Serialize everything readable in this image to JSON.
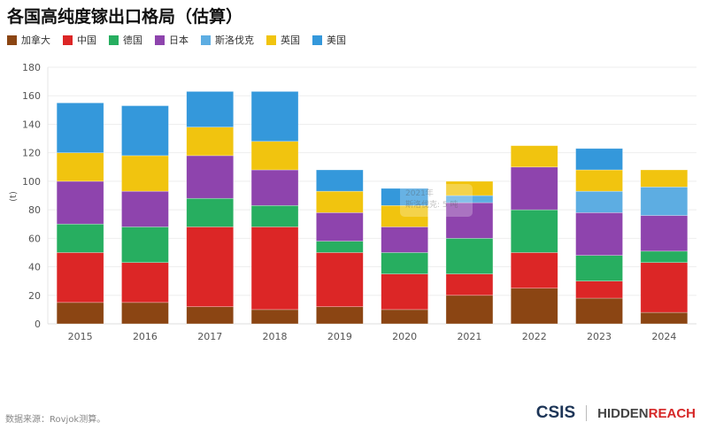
{
  "title": "各国高纯度镓出口格局（估算）",
  "source": "数据来源：Rovjok测算。",
  "logo": {
    "csis": "CSIS",
    "hidden": "HIDDEN",
    "reach": "REACH"
  },
  "tooltip": {
    "title": "2021年",
    "text": "斯洛伐克: 5 吨"
  },
  "chart_data": {
    "type": "bar",
    "stacked": true,
    "title": "各国高纯度镓出口格局（估算）",
    "ylabel": "(t)",
    "ylim": [
      0,
      180
    ],
    "yticks": [
      "0",
      "20",
      "40",
      "60",
      "80",
      "100",
      "120",
      "140",
      "160",
      "180"
    ],
    "grid": true,
    "legend_position": "top-left",
    "categories": [
      "2015",
      "2016",
      "2017",
      "2018",
      "2019",
      "2020",
      "2021",
      "2022",
      "2023",
      "2024"
    ],
    "series": [
      {
        "name": "加拿大",
        "color": "#8b4513",
        "values": [
          15,
          15,
          12,
          10,
          12,
          10,
          20,
          25,
          18,
          8
        ]
      },
      {
        "name": "中国",
        "color": "#dc2626",
        "values": [
          35,
          28,
          56,
          58,
          38,
          25,
          15,
          25,
          12,
          35
        ]
      },
      {
        "name": "德国",
        "color": "#27ae60",
        "values": [
          20,
          25,
          20,
          15,
          8,
          15,
          25,
          30,
          18,
          8
        ]
      },
      {
        "name": "日本",
        "color": "#8e44ad",
        "values": [
          30,
          25,
          30,
          25,
          20,
          18,
          25,
          30,
          30,
          25
        ]
      },
      {
        "name": "斯洛伐克",
        "color": "#5dade2",
        "values": [
          0,
          0,
          0,
          0,
          0,
          0,
          5,
          0,
          15,
          20
        ]
      },
      {
        "name": "英国",
        "color": "#f1c40f",
        "values": [
          20,
          25,
          20,
          20,
          15,
          15,
          10,
          15,
          15,
          12
        ]
      },
      {
        "name": "美国",
        "color": "#3498db",
        "values": [
          35,
          35,
          25,
          35,
          15,
          12,
          0,
          0,
          15,
          0
        ]
      }
    ]
  }
}
